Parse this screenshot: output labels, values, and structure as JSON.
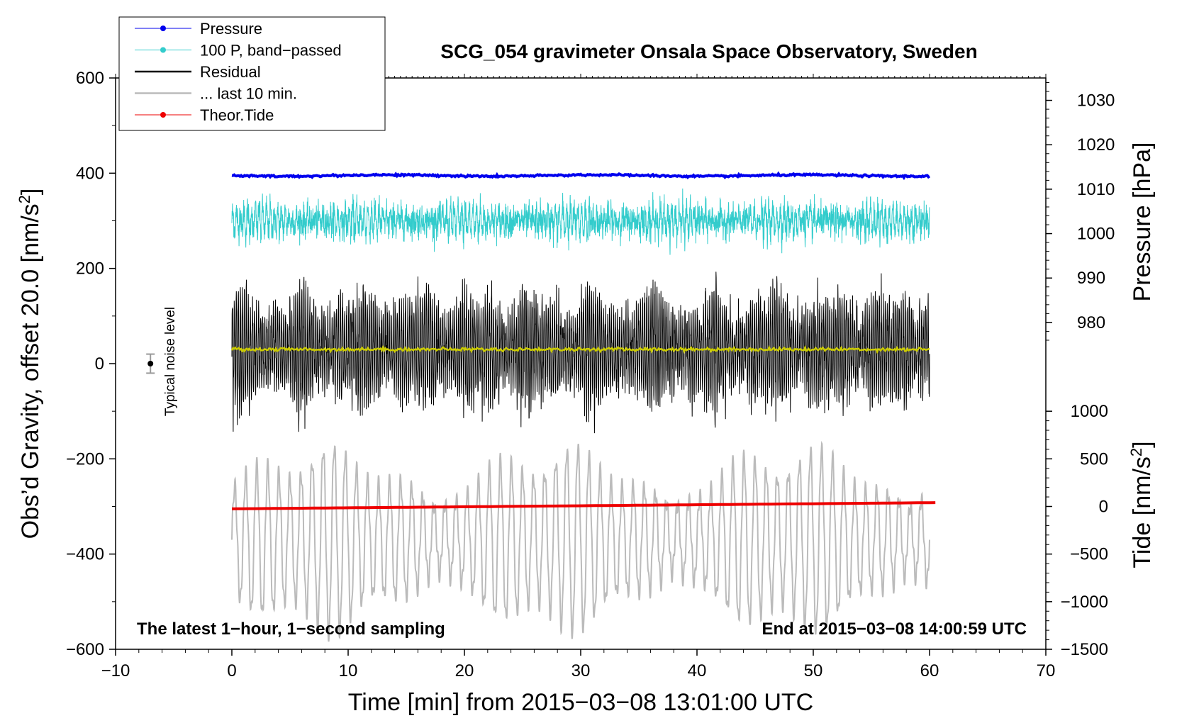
{
  "chart_data": {
    "type": "line",
    "title": "SCG_054 gravimeter Onsala Space Observatory, Sweden",
    "xlabel": "Time [min] from 2015−03−08 13:01:00 UTC",
    "ylabel_left": "Obs’d Gravity, offset 20.0 [nm/s",
    "ylabel_left_sup": "2",
    "ylabel_left_end": "]",
    "ylabel_right_pressure": "Pressure [hPa]",
    "ylabel_right_tide": "Tide [nm/s",
    "ylabel_right_tide_sup": "2",
    "ylabel_right_tide_end": "]",
    "xlim": [
      -10,
      70
    ],
    "ylim": [
      -600,
      600
    ],
    "x_ticks": [
      "−10",
      "0",
      "10",
      "20",
      "30",
      "40",
      "50",
      "60",
      "70"
    ],
    "x_tick_values": [
      -10,
      0,
      10,
      20,
      30,
      40,
      50,
      60,
      70
    ],
    "y_ticks_left": [
      "600",
      "400",
      "200",
      "0",
      "−200",
      "−400",
      "−600"
    ],
    "y_tick_values_left": [
      600,
      400,
      200,
      0,
      -200,
      -400,
      -600
    ],
    "pressure_ticks": [
      "1030",
      "1020",
      "1010",
      "1000",
      "990",
      "980"
    ],
    "pressure_tick_values": [
      1030,
      1020,
      1010,
      1000,
      990,
      980
    ],
    "pressure_mapping": {
      "hpa_at_1030_left": 553,
      "hpa_per_10": -93.3
    },
    "tide_ticks": [
      "1000",
      "500",
      "0",
      "−500",
      "−1000",
      "−1500"
    ],
    "tide_tick_values": [
      1000,
      500,
      0,
      -500,
      -1000,
      -1500
    ],
    "tide_mapping": {
      "left_at_tide_0": -300,
      "left_per_500_tide": 100
    },
    "notes": {
      "bottom_left": "The latest 1−hour, 1−second sampling",
      "bottom_right": "End at 2015−03−08 14:00:59 UTC",
      "noise_label": "Typical noise level",
      "noise_marker": {
        "x": -7,
        "y": 0,
        "err": 20
      }
    },
    "legend": [
      {
        "label": "Pressure",
        "color": "#0000ee",
        "marker": "dot"
      },
      {
        "label": "100 P, band−passed",
        "color": "#33cccc",
        "marker": "dot"
      },
      {
        "label": "Residual",
        "color": "#000000",
        "marker": "line"
      },
      {
        "label": "... last 10 min.",
        "color": "#bbbbbb",
        "marker": "line"
      },
      {
        "label": "Theor.Tide",
        "color": "#ee0000",
        "marker": "dot"
      }
    ],
    "series": [
      {
        "name": "Pressure",
        "color": "#0000ee",
        "x_range": [
          0,
          60
        ],
        "level": 395,
        "noise": 2
      },
      {
        "name": "100 P, band−passed",
        "color": "#33cccc",
        "x_range": [
          0,
          60
        ],
        "level": 300,
        "amp": 50
      },
      {
        "name": "Residual",
        "color": "#000000",
        "x_range": [
          0,
          60
        ],
        "level": 30,
        "amp": 150
      },
      {
        "name": "Residual mean",
        "color": "#cccc00",
        "x_range": [
          0,
          60
        ],
        "level": 30
      },
      {
        "name": "... last 10 min.",
        "color": "#bbbbbb",
        "x_range": [
          0,
          60
        ],
        "center": -380,
        "amp": 200
      },
      {
        "name": "Theor.Tide",
        "color": "#ee0000",
        "x_range": [
          0,
          60.5
        ],
        "y_start": -305,
        "y_end": -292
      }
    ]
  }
}
